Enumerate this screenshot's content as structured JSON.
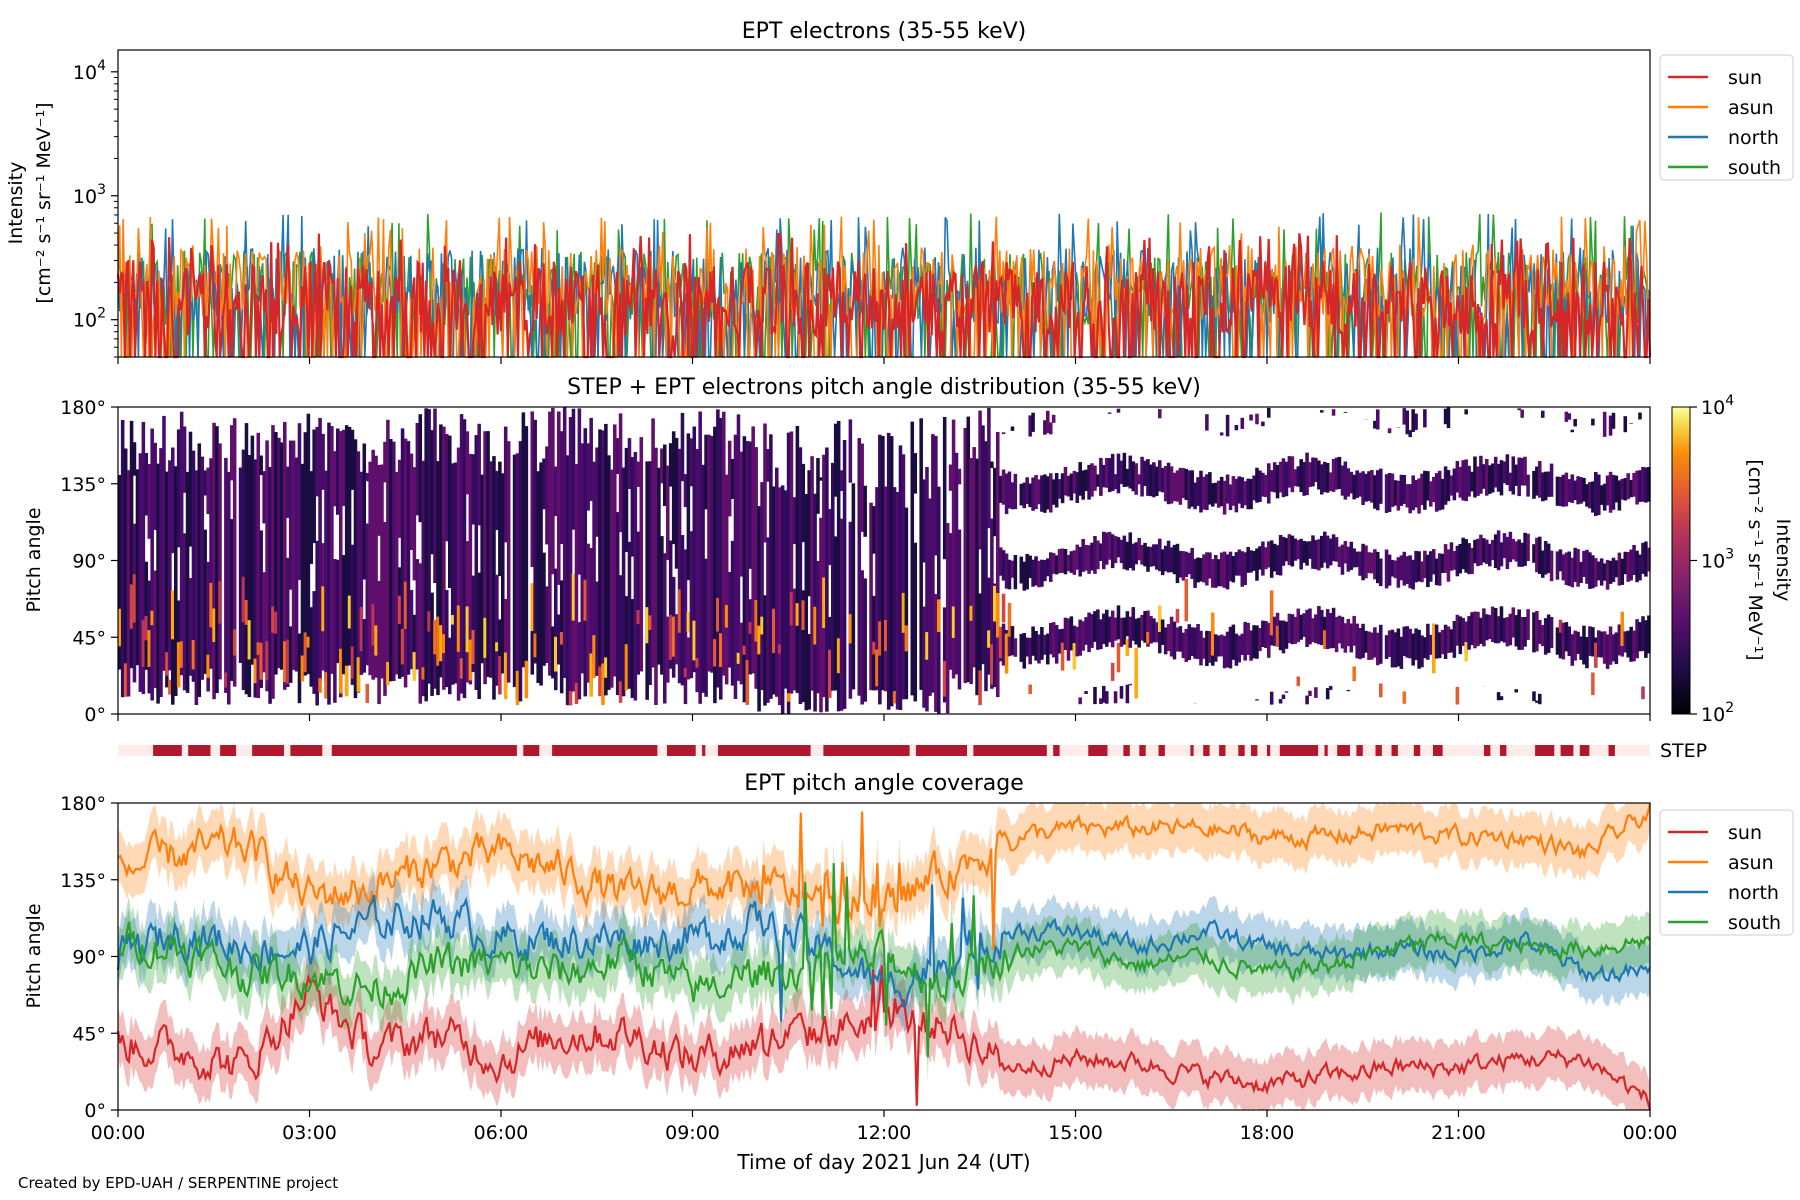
{
  "figure": {
    "credit": "Created by EPD-UAH / SERPENTINE project"
  },
  "colors": {
    "sun": "#d62728",
    "asun": "#ff7f0e",
    "north": "#1f77b4",
    "south": "#2ca02c",
    "step_bar": "#b2182b",
    "step_bg": "#fdecea"
  },
  "chart_data": [
    {
      "type": "line",
      "title": "EPT electrons (35-55 keV)",
      "ylabel_lines": [
        "Intensity",
        "[cm⁻² s⁻¹ sr⁻¹ MeV⁻¹]"
      ],
      "yscale": "log",
      "ylim": [
        50,
        15000
      ],
      "yticks": [
        {
          "value": 100,
          "base": "10",
          "exp": "2"
        },
        {
          "value": 1000,
          "base": "10",
          "exp": "3"
        },
        {
          "value": 10000,
          "base": "10",
          "exp": "4"
        }
      ],
      "xlim_hours": [
        0,
        24
      ],
      "legend": {
        "placement": "outside-right-top",
        "entries": [
          "sun",
          "asun",
          "north",
          "south"
        ]
      },
      "series": [
        {
          "name": "sun",
          "typical_level": 150,
          "typical_max": 480
        },
        {
          "name": "asun",
          "typical_level": 200,
          "typical_max": 650
        },
        {
          "name": "north",
          "typical_level": 190,
          "typical_max": 700
        },
        {
          "name": "south",
          "typical_level": 180,
          "typical_max": 700
        }
      ]
    },
    {
      "type": "heatmap",
      "title": "STEP + EPT electrons pitch angle distribution (35-55 keV)",
      "ylabel": "Pitch angle",
      "ylim": [
        0,
        180
      ],
      "yticks": [
        "0°",
        "45°",
        "90°",
        "135°",
        "180°"
      ],
      "colorbar": {
        "label_lines": [
          "Intensity",
          "[cm⁻² s⁻¹ sr⁻¹ MeV⁻¹]"
        ],
        "scale": "log",
        "range": [
          100,
          10000
        ],
        "ticks": [
          {
            "base": "10",
            "exp": "2"
          },
          {
            "base": "10",
            "exp": "3"
          },
          {
            "base": "10",
            "exp": "4"
          }
        ],
        "colormap": "inferno"
      },
      "ept_gaps_hours": [
        {
          "start": 13.8,
          "end": 24,
          "centers": [
            22,
            68,
            112,
            158
          ]
        }
      ]
    },
    {
      "type": "table",
      "title": "",
      "label": "STEP",
      "covered_intervals_hours": [
        [
          0.55,
          1.0
        ],
        [
          1.1,
          1.45
        ],
        [
          1.6,
          1.85
        ],
        [
          2.1,
          2.6
        ],
        [
          2.7,
          3.2
        ],
        [
          3.35,
          6.25
        ],
        [
          6.35,
          6.6
        ],
        [
          6.8,
          8.45
        ],
        [
          8.6,
          9.05
        ],
        [
          9.15,
          9.2
        ],
        [
          9.4,
          10.85
        ],
        [
          11.05,
          12.4
        ],
        [
          12.5,
          13.3
        ],
        [
          13.4,
          14.55
        ],
        [
          14.65,
          14.75
        ],
        [
          15.2,
          15.5
        ],
        [
          15.75,
          15.85
        ],
        [
          16.0,
          16.1
        ],
        [
          16.3,
          16.4
        ],
        [
          16.8,
          16.85
        ],
        [
          17.0,
          17.1
        ],
        [
          17.25,
          17.35
        ],
        [
          17.55,
          17.65
        ],
        [
          17.75,
          17.85
        ],
        [
          18.0,
          18.05
        ],
        [
          18.2,
          18.8
        ],
        [
          18.9,
          18.95
        ],
        [
          19.1,
          19.3
        ],
        [
          19.4,
          19.5
        ],
        [
          19.7,
          19.8
        ],
        [
          19.95,
          20.05
        ],
        [
          20.3,
          20.4
        ],
        [
          20.6,
          20.75
        ],
        [
          21.4,
          21.5
        ],
        [
          21.65,
          21.75
        ],
        [
          22.2,
          22.5
        ],
        [
          22.6,
          22.8
        ],
        [
          22.9,
          23.05
        ],
        [
          23.35,
          23.45
        ]
      ]
    },
    {
      "type": "line",
      "title": "EPT pitch angle coverage",
      "ylabel": "Pitch angle",
      "xlabel": "Time of day 2021 Jun 24 (UT)",
      "ylim": [
        0,
        180
      ],
      "yticks": [
        "0°",
        "45°",
        "90°",
        "135°",
        "180°"
      ],
      "xticks": [
        "00:00",
        "03:00",
        "06:00",
        "09:00",
        "12:00",
        "15:00",
        "18:00",
        "21:00",
        "00:00"
      ],
      "legend": {
        "placement": "outside-right-top",
        "entries": [
          "sun",
          "asun",
          "north",
          "south"
        ]
      },
      "series": [
        {
          "name": "sun",
          "x_hours": [
            0,
            1,
            2,
            3,
            4,
            5,
            6,
            7,
            8,
            9,
            10,
            11,
            12,
            13,
            14,
            15,
            16,
            17,
            18,
            19,
            20,
            21,
            22,
            23,
            24
          ],
          "values": [
            40,
            35,
            25,
            70,
            35,
            45,
            30,
            45,
            45,
            30,
            40,
            45,
            55,
            50,
            25,
            30,
            28,
            20,
            15,
            20,
            25,
            25,
            30,
            30,
            5
          ]
        },
        {
          "name": "asun",
          "x_hours": [
            0,
            1,
            2,
            3,
            4,
            5,
            6,
            7,
            8,
            9,
            10,
            11,
            12,
            13,
            14,
            15,
            16,
            17,
            18,
            19,
            20,
            21,
            22,
            23,
            24
          ],
          "values": [
            140,
            150,
            155,
            125,
            130,
            145,
            150,
            140,
            125,
            130,
            130,
            125,
            120,
            140,
            160,
            165,
            165,
            165,
            160,
            160,
            165,
            160,
            160,
            150,
            175
          ]
        },
        {
          "name": "north",
          "x_hours": [
            0,
            1,
            2,
            3,
            4,
            5,
            6,
            7,
            8,
            9,
            10,
            11,
            12,
            13,
            14,
            15,
            16,
            17,
            18,
            19,
            20,
            21,
            22,
            23,
            24
          ],
          "values": [
            90,
            105,
            95,
            95,
            110,
            115,
            100,
            100,
            100,
            100,
            110,
            95,
            70,
            90,
            105,
            105,
            95,
            105,
            95,
            90,
            95,
            90,
            100,
            80,
            80
          ]
        },
        {
          "name": "south",
          "x_hours": [
            0,
            1,
            2,
            3,
            4,
            5,
            6,
            7,
            8,
            9,
            10,
            11,
            12,
            13,
            14,
            15,
            16,
            17,
            18,
            19,
            20,
            21,
            22,
            23,
            24
          ],
          "values": [
            100,
            95,
            80,
            80,
            70,
            85,
            85,
            80,
            90,
            70,
            80,
            85,
            90,
            75,
            95,
            95,
            85,
            90,
            80,
            85,
            95,
            100,
            95,
            95,
            100
          ]
        }
      ]
    }
  ]
}
